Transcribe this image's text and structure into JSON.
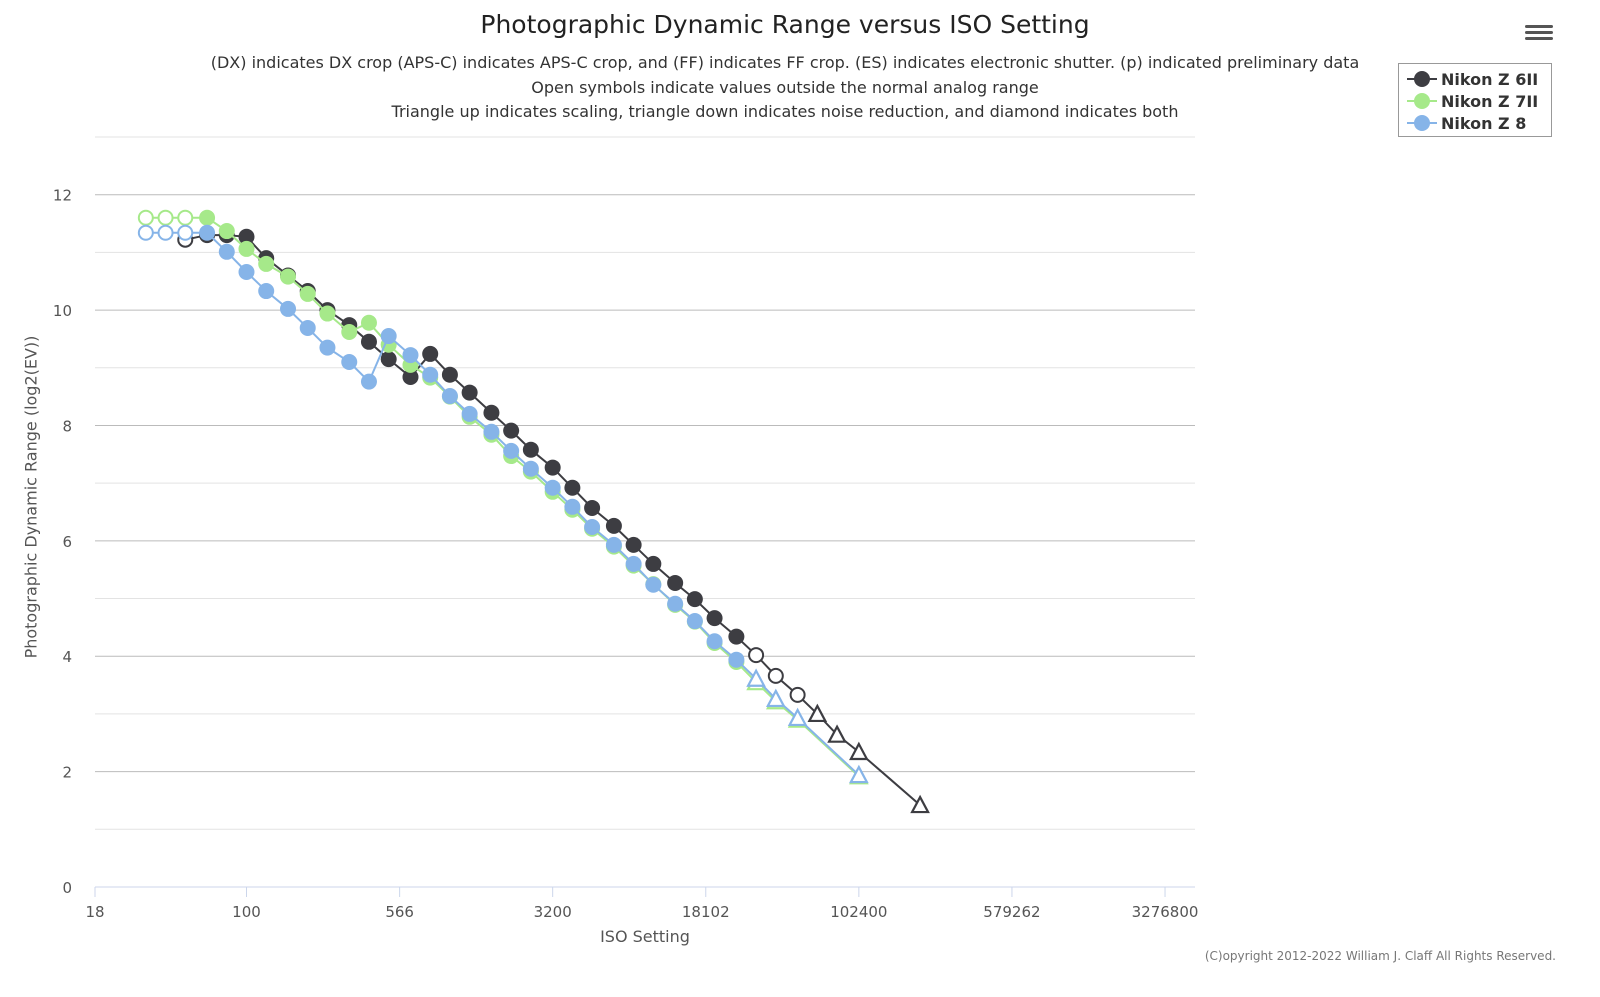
{
  "chart_data": {
    "type": "line",
    "title": "Photographic Dynamic Range versus ISO Setting",
    "subtitles": [
      "(DX) indicates DX crop (APS-C) indicates APS-C crop, and (FF) indicates FF crop. (ES) indicates electronic shutter. (p) indicated preliminary data",
      "Open symbols indicate values outside the normal analog range",
      "Triangle up indicates scaling, triangle down indicates noise reduction, and diamond indicates both"
    ],
    "xlabel": "ISO Setting",
    "ylabel": "Photographic Dynamic Range (log2(EV))",
    "x_scale": "log2",
    "xlim": [
      18,
      4600000
    ],
    "ylim": [
      0,
      13
    ],
    "x_ticks": [
      "18",
      "100",
      "566",
      "3200",
      "18102",
      "102400",
      "579262",
      "3276800"
    ],
    "x_tick_values": [
      18,
      100,
      566,
      3200,
      18102,
      102400,
      579262,
      3276800
    ],
    "y_ticks": [
      0,
      2,
      4,
      6,
      8,
      10,
      12
    ],
    "grid": true,
    "legend_placement": "top-right",
    "marker_legend": {
      "filled": "circle",
      "open": "open circle",
      "tri": "open triangle up (scaling)"
    },
    "series": [
      {
        "name": "Nikon Z 6II",
        "color": "#3d3d42",
        "points": [
          [
            50,
            11.22,
            "open"
          ],
          [
            64,
            11.3,
            "filled"
          ],
          [
            80,
            11.3,
            "filled"
          ],
          [
            100,
            11.27,
            "filled"
          ],
          [
            125,
            10.9,
            "filled"
          ],
          [
            160,
            10.6,
            "filled"
          ],
          [
            200,
            10.33,
            "filled"
          ],
          [
            250,
            10.0,
            "filled"
          ],
          [
            320,
            9.74,
            "filled"
          ],
          [
            400,
            9.45,
            "filled"
          ],
          [
            500,
            9.15,
            "filled"
          ],
          [
            640,
            8.84,
            "filled"
          ],
          [
            800,
            9.24,
            "filled"
          ],
          [
            1000,
            8.88,
            "filled"
          ],
          [
            1250,
            8.57,
            "filled"
          ],
          [
            1600,
            8.22,
            "filled"
          ],
          [
            2000,
            7.91,
            "filled"
          ],
          [
            2500,
            7.58,
            "filled"
          ],
          [
            3200,
            7.27,
            "filled"
          ],
          [
            4000,
            6.92,
            "filled"
          ],
          [
            5000,
            6.57,
            "filled"
          ],
          [
            6400,
            6.26,
            "filled"
          ],
          [
            8000,
            5.93,
            "filled"
          ],
          [
            10000,
            5.6,
            "filled"
          ],
          [
            12800,
            5.27,
            "filled"
          ],
          [
            16000,
            4.99,
            "filled"
          ],
          [
            20000,
            4.66,
            "filled"
          ],
          [
            25600,
            4.34,
            "filled"
          ],
          [
            32000,
            4.02,
            "open"
          ],
          [
            40000,
            3.66,
            "open"
          ],
          [
            51200,
            3.33,
            "open"
          ],
          [
            64000,
            3.0,
            "tri"
          ],
          [
            80000,
            2.64,
            "tri"
          ],
          [
            102400,
            2.34,
            "tri"
          ],
          [
            204800,
            1.42,
            "tri"
          ]
        ]
      },
      {
        "name": "Nikon Z 7II",
        "color": "#a6e98a",
        "points": [
          [
            32,
            11.6,
            "open"
          ],
          [
            40,
            11.6,
            "open"
          ],
          [
            50,
            11.6,
            "open"
          ],
          [
            64,
            11.6,
            "filled"
          ],
          [
            80,
            11.37,
            "filled"
          ],
          [
            100,
            11.06,
            "filled"
          ],
          [
            125,
            10.8,
            "filled"
          ],
          [
            160,
            10.58,
            "filled"
          ],
          [
            200,
            10.28,
            "filled"
          ],
          [
            250,
            9.94,
            "filled"
          ],
          [
            320,
            9.62,
            "filled"
          ],
          [
            400,
            9.78,
            "filled"
          ],
          [
            500,
            9.4,
            "filled"
          ],
          [
            640,
            9.05,
            "filled"
          ],
          [
            800,
            8.83,
            "filled"
          ],
          [
            1000,
            8.5,
            "filled"
          ],
          [
            1250,
            8.15,
            "filled"
          ],
          [
            1600,
            7.84,
            "filled"
          ],
          [
            2000,
            7.47,
            "filled"
          ],
          [
            2500,
            7.2,
            "filled"
          ],
          [
            3200,
            6.85,
            "filled"
          ],
          [
            4000,
            6.54,
            "filled"
          ],
          [
            5000,
            6.21,
            "filled"
          ],
          [
            6400,
            5.9,
            "filled"
          ],
          [
            8000,
            5.57,
            "filled"
          ],
          [
            10000,
            5.25,
            "filled"
          ],
          [
            12800,
            4.89,
            "filled"
          ],
          [
            16000,
            4.6,
            "filled"
          ],
          [
            20000,
            4.23,
            "filled"
          ],
          [
            25600,
            3.9,
            "filled"
          ],
          [
            32000,
            3.55,
            "tri"
          ],
          [
            40000,
            3.22,
            "tri"
          ],
          [
            51200,
            2.9,
            "tri"
          ],
          [
            102400,
            1.92,
            "tri"
          ]
        ]
      },
      {
        "name": "Nikon Z 8",
        "color": "#86b4e8",
        "points": [
          [
            32,
            11.34,
            "open"
          ],
          [
            40,
            11.34,
            "open"
          ],
          [
            50,
            11.34,
            "open"
          ],
          [
            64,
            11.34,
            "filled"
          ],
          [
            80,
            11.01,
            "filled"
          ],
          [
            100,
            10.66,
            "filled"
          ],
          [
            125,
            10.33,
            "filled"
          ],
          [
            160,
            10.02,
            "filled"
          ],
          [
            200,
            9.69,
            "filled"
          ],
          [
            250,
            9.35,
            "filled"
          ],
          [
            320,
            9.1,
            "filled"
          ],
          [
            400,
            8.76,
            "filled"
          ],
          [
            500,
            9.55,
            "filled"
          ],
          [
            640,
            9.22,
            "filled"
          ],
          [
            800,
            8.88,
            "filled"
          ],
          [
            1000,
            8.51,
            "filled"
          ],
          [
            1250,
            8.2,
            "filled"
          ],
          [
            1600,
            7.89,
            "filled"
          ],
          [
            2000,
            7.56,
            "filled"
          ],
          [
            2500,
            7.25,
            "filled"
          ],
          [
            3200,
            6.92,
            "filled"
          ],
          [
            4000,
            6.59,
            "filled"
          ],
          [
            5000,
            6.24,
            "filled"
          ],
          [
            6400,
            5.93,
            "filled"
          ],
          [
            8000,
            5.6,
            "filled"
          ],
          [
            10000,
            5.24,
            "filled"
          ],
          [
            12800,
            4.91,
            "filled"
          ],
          [
            16000,
            4.61,
            "filled"
          ],
          [
            20000,
            4.26,
            "filled"
          ],
          [
            25600,
            3.94,
            "filled"
          ],
          [
            32000,
            3.61,
            "tri"
          ],
          [
            40000,
            3.26,
            "tri"
          ],
          [
            51200,
            2.93,
            "tri"
          ],
          [
            102400,
            1.94,
            "tri"
          ]
        ]
      }
    ]
  },
  "copyright": "(C)opyright 2012-2022 William J. Claff All Rights Reserved.",
  "menu_icon": "hamburger-icon"
}
